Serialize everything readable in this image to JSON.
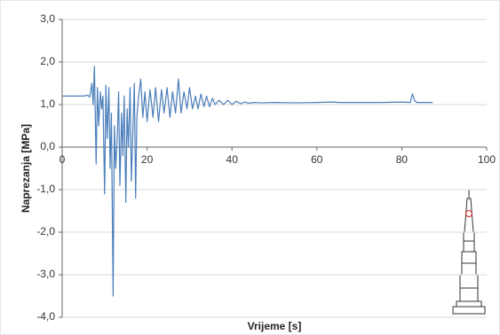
{
  "chart_data": {
    "type": "line",
    "x_label": "Vrijeme [s]",
    "y_label": "Naprezanja [MPa]",
    "x": [
      0,
      5,
      6,
      6.5,
      7,
      7.3,
      7.6,
      8,
      8.3,
      8.6,
      9,
      9.3,
      9.6,
      10,
      10.3,
      10.6,
      11,
      11.3,
      11.6,
      12,
      12.3,
      12.6,
      13,
      13.3,
      13.6,
      14,
      14.3,
      14.6,
      15,
      15.3,
      15.6,
      16,
      16.3,
      16.6,
      17,
      17.3,
      17.6,
      18,
      18.5,
      19,
      19.5,
      20,
      20.7,
      21.4,
      22,
      22.7,
      23.4,
      24,
      24.7,
      25.4,
      26,
      26.7,
      27.4,
      28,
      28.7,
      29.4,
      30,
      30.7,
      31.4,
      32,
      32.7,
      33.4,
      34,
      34.7,
      35.4,
      36,
      37,
      38,
      39,
      40,
      41,
      42,
      43,
      44,
      45,
      47,
      50,
      55,
      60,
      64,
      65,
      70,
      75,
      80,
      82,
      82.5,
      83,
      83.5,
      85,
      87.3
    ],
    "series": [
      {
        "color": "#4a7ebb",
        "values": [
          1.2,
          1.2,
          1.22,
          1.18,
          1.5,
          1.0,
          1.9,
          -0.4,
          1.4,
          0.5,
          1.3,
          0.9,
          1.2,
          -1.1,
          1.45,
          0.2,
          1.4,
          -0.5,
          0.8,
          -3.5,
          0.5,
          -0.5,
          0.3,
          1.3,
          -0.9,
          0.8,
          -0.2,
          1.2,
          -1.3,
          0.9,
          0.0,
          1.4,
          -0.8,
          0.2,
          1.5,
          -1.2,
          0.7,
          1.2,
          1.6,
          0.7,
          1.3,
          0.6,
          1.35,
          0.7,
          1.4,
          0.6,
          1.35,
          0.8,
          1.4,
          0.7,
          1.3,
          0.8,
          1.6,
          0.8,
          1.3,
          0.9,
          1.4,
          0.9,
          1.2,
          0.9,
          1.25,
          0.95,
          1.2,
          0.95,
          1.15,
          1.0,
          1.1,
          1.0,
          1.1,
          1.0,
          1.08,
          1.02,
          1.06,
          1.03,
          1.05,
          1.04,
          1.05,
          1.04,
          1.05,
          1.06,
          1.05,
          1.05,
          1.05,
          1.06,
          1.05,
          1.25,
          1.1,
          1.05,
          1.05,
          1.05
        ]
      }
    ],
    "xlim": [
      0,
      100
    ],
    "xticks": [
      0,
      20,
      40,
      60,
      80,
      100
    ],
    "ylim": [
      -4,
      3
    ],
    "yticks": [
      {
        "value": -4,
        "label": "-4,0"
      },
      {
        "value": -3,
        "label": "-3,0"
      },
      {
        "value": -2,
        "label": "-2,0"
      },
      {
        "value": -1,
        "label": "-1,0"
      },
      {
        "value": 0,
        "label": "0,0"
      },
      {
        "value": 1,
        "label": "1,0"
      },
      {
        "value": 2,
        "label": "2,0"
      },
      {
        "value": 3,
        "label": "3,0"
      }
    ],
    "grid": true
  }
}
